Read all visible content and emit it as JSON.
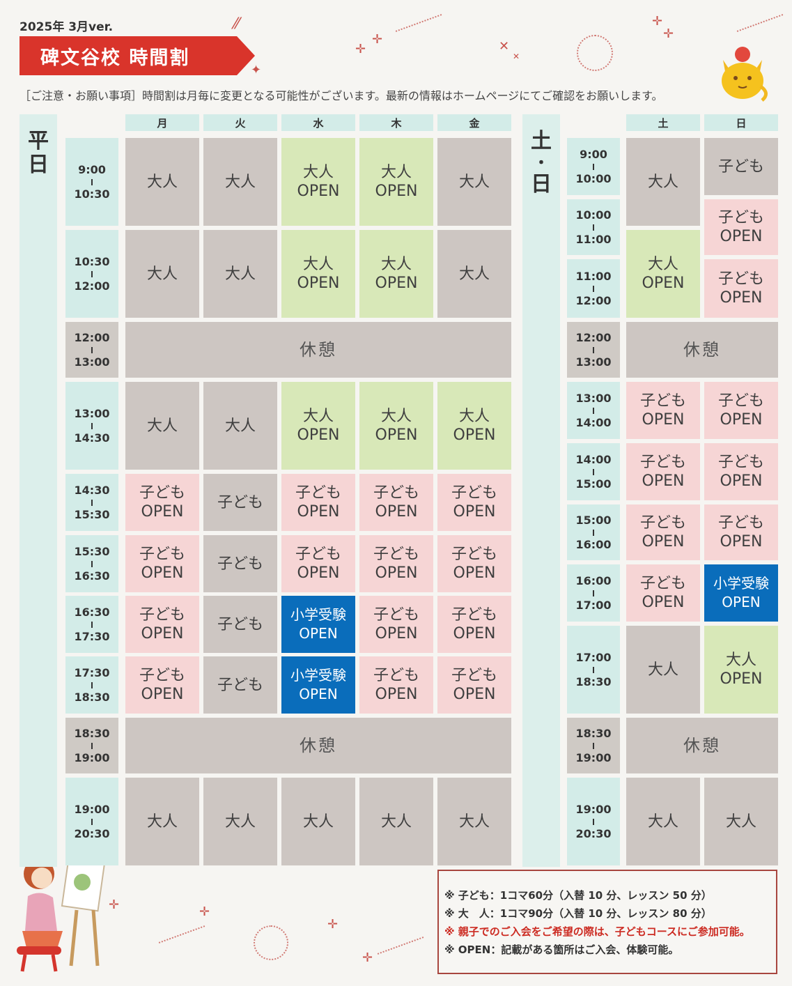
{
  "version": "2025年 3月ver.",
  "title": "碑文谷校 時間割",
  "notice": "［ご注意・お願い事項］時間割は月毎に変更となる可能性がございます。最新の情報はホームページにてご確認をお願いします。",
  "weekday_label": "平日",
  "weekend_label_top": "土",
  "weekend_label_dot": "・",
  "weekend_label_bottom": "日",
  "weekday_days": [
    "月",
    "火",
    "水",
    "木",
    "金"
  ],
  "weekend_days": [
    "土",
    "日"
  ],
  "weekday_times": [
    {
      "start": "9:00",
      "end": "10:30"
    },
    {
      "start": "10:30",
      "end": "12:00"
    },
    {
      "start": "12:00",
      "end": "13:00"
    },
    {
      "start": "13:00",
      "end": "14:30"
    },
    {
      "start": "14:30",
      "end": "15:30"
    },
    {
      "start": "15:30",
      "end": "16:30"
    },
    {
      "start": "16:30",
      "end": "17:30"
    },
    {
      "start": "17:30",
      "end": "18:30"
    },
    {
      "start": "18:30",
      "end": "19:00"
    },
    {
      "start": "19:00",
      "end": "20:30"
    }
  ],
  "weekend_times": [
    {
      "start": "9:00",
      "end": "10:00"
    },
    {
      "start": "10:00",
      "end": "11:00"
    },
    {
      "start": "11:00",
      "end": "12:00"
    },
    {
      "start": "12:00",
      "end": "13:00"
    },
    {
      "start": "13:00",
      "end": "14:00"
    },
    {
      "start": "14:00",
      "end": "15:00"
    },
    {
      "start": "15:00",
      "end": "16:00"
    },
    {
      "start": "16:00",
      "end": "17:00"
    },
    {
      "start": "17:00",
      "end": "18:30"
    },
    {
      "start": "18:30",
      "end": "19:00"
    },
    {
      "start": "19:00",
      "end": "20:30"
    }
  ],
  "labels": {
    "adult": "大人",
    "kids": "子ども",
    "open": "OPEN",
    "juken": "小学受験",
    "rest": "休憩"
  },
  "notes": {
    "kids": "※ 子ども：1コマ60分（入替 10 分、レッスン 50 分）",
    "adult": "※ 大　人：1コマ90分（入替 10 分、レッスン 80 分）",
    "parent": "※ 親子でのご入会をご希望の際は、子どもコースにご参加可能。",
    "open": "※ OPEN：記載がある箇所はご入会、体験可能。"
  },
  "colors": {
    "red": "#d9342b",
    "adult_open": "#d8e8b8",
    "kids_open": "#f6d5d5",
    "juken": "#0a6dbb",
    "gray": "#cdc6c2",
    "teal": "#d3ece8"
  },
  "decoration_icons": [
    "sparkle-icon",
    "mascot-cat-icon",
    "painter-girl-illustration"
  ]
}
